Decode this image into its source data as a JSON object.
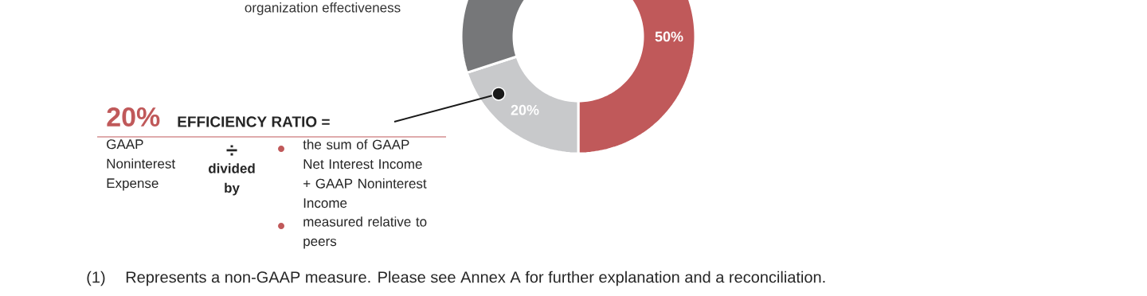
{
  "chart_data": {
    "type": "donut",
    "categories": [
      null,
      null,
      null
    ],
    "values": [
      50,
      20,
      30
    ],
    "colors": [
      "#c0595a",
      "#c8c9cb",
      "#767779"
    ],
    "value_labels": [
      "50%",
      "20%",
      null
    ],
    "annotations": [
      "organization effectiveness",
      "20%",
      "EFFICIENCY RATIO =",
      "GAAP Noninterest Expense",
      "÷",
      "divided by",
      "the sum of GAAP Net Interest Income + GAAP Noninterest Income",
      "measured relative to peers",
      "(1)",
      "Represents a non-GAAP measure. Please see Annex A for further explanation and a reconciliation."
    ]
  }
}
